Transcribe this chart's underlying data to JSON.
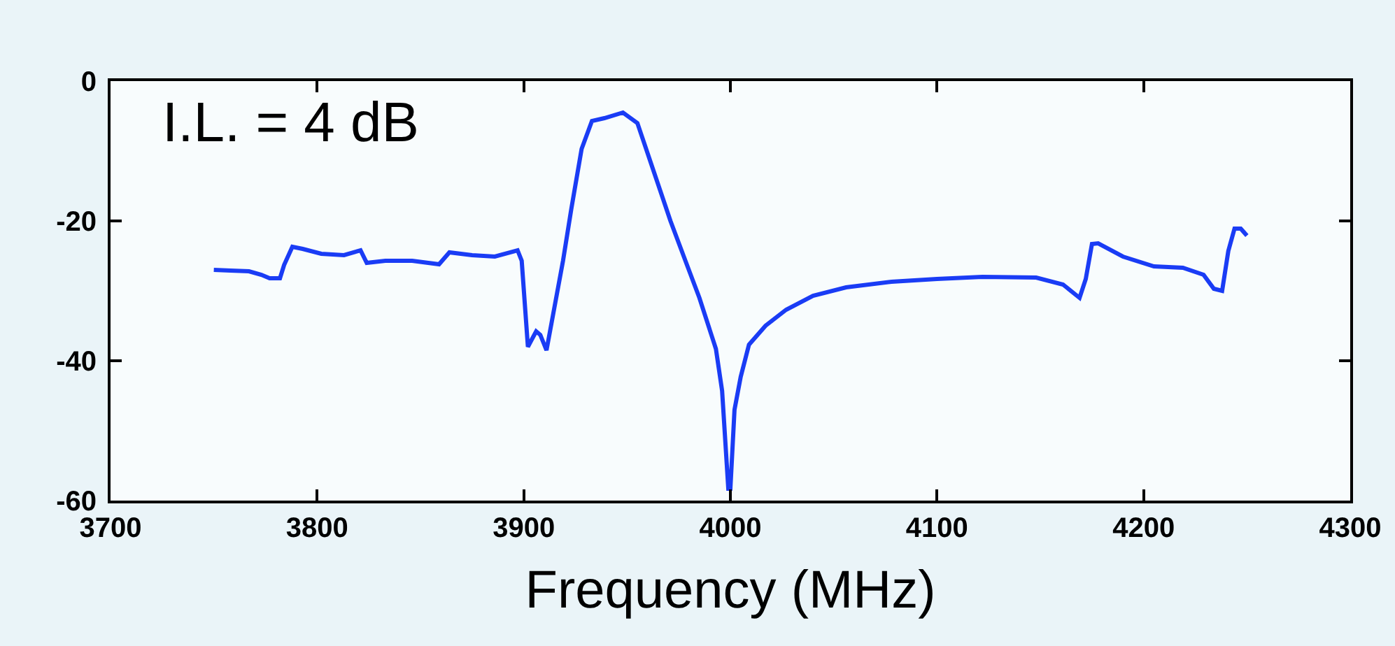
{
  "chart_data": {
    "type": "line",
    "xlabel": "Frequency (MHz)",
    "x": [
      3750,
      3758,
      3767,
      3773,
      3777,
      3782,
      3784,
      3788,
      3793,
      3802,
      3813,
      3821,
      3824,
      3833,
      3846,
      3859,
      3864,
      3875,
      3886,
      3897,
      3899,
      3902,
      3906,
      3908,
      3911,
      3914,
      3919,
      3923,
      3928,
      3933,
      3939,
      3948,
      3955,
      3963,
      3971,
      3979,
      3985,
      3993,
      3996,
      3999,
      4000,
      4002,
      4005,
      4009,
      4017,
      4027,
      4040,
      4056,
      4078,
      4100,
      4122,
      4148,
      4161,
      4169,
      4172,
      4175,
      4178,
      4190,
      4205,
      4219,
      4229,
      4234,
      4238,
      4241,
      4244,
      4247,
      4250
    ],
    "series": [
      {
        "color": "#1a3cf5",
        "values": [
          -27.0,
          -27.1,
          -27.2,
          -27.7,
          -28.2,
          -28.2,
          -26.3,
          -23.7,
          -24.0,
          -24.7,
          -24.9,
          -24.2,
          -26.0,
          -25.7,
          -25.7,
          -26.2,
          -24.5,
          -24.9,
          -25.1,
          -24.2,
          -25.7,
          -38.0,
          -35.8,
          -36.3,
          -38.5,
          -33.7,
          -25.7,
          -18.3,
          -9.7,
          -5.7,
          -5.3,
          -4.5,
          -6.0,
          -13.0,
          -20.0,
          -26.3,
          -31.0,
          -38.3,
          -44.3,
          -58.3,
          -58.3,
          -47.0,
          -42.3,
          -37.7,
          -35.0,
          -32.7,
          -30.7,
          -29.5,
          -28.7,
          -28.3,
          -28.0,
          -28.1,
          -29.1,
          -31.0,
          -28.3,
          -23.3,
          -23.2,
          -25.1,
          -26.5,
          -26.7,
          -27.7,
          -29.7,
          -30.0,
          -24.3,
          -21.1,
          -21.1,
          -22.1
        ]
      }
    ],
    "xlim": [
      3700,
      4300
    ],
    "xticks": [
      3700,
      3800,
      3900,
      4000,
      4100,
      4200,
      4300
    ],
    "ylim": [
      -60,
      0
    ],
    "yticks": [
      -60,
      -40,
      -20,
      0
    ],
    "grid": false,
    "marker": "none",
    "line_style": "solid",
    "annotations": [
      "I.L. = 4 dB"
    ]
  }
}
